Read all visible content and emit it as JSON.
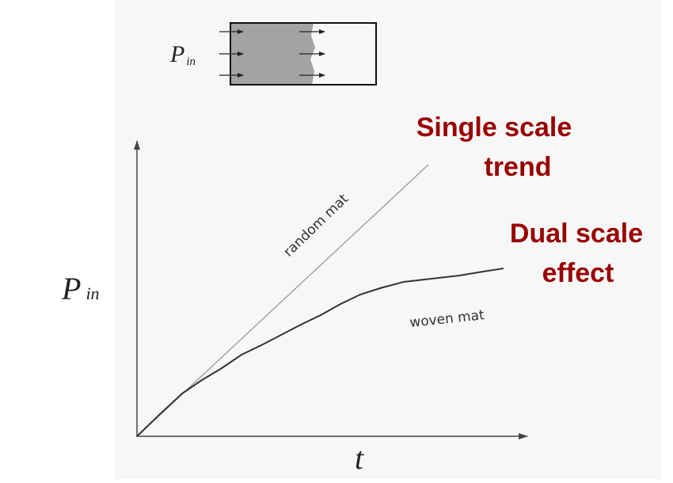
{
  "inset": {
    "label": {
      "main": "P",
      "sub": "in"
    }
  },
  "axes": {
    "y_label": {
      "main": "P",
      "sub": "in"
    },
    "x_label": "t"
  },
  "curves": [
    {
      "label": "random mat"
    },
    {
      "label": "woven mat"
    }
  ],
  "annotations": [
    {
      "lines": [
        "Single scale",
        "trend"
      ]
    },
    {
      "lines": [
        "Dual scale",
        "effect"
      ]
    }
  ]
}
